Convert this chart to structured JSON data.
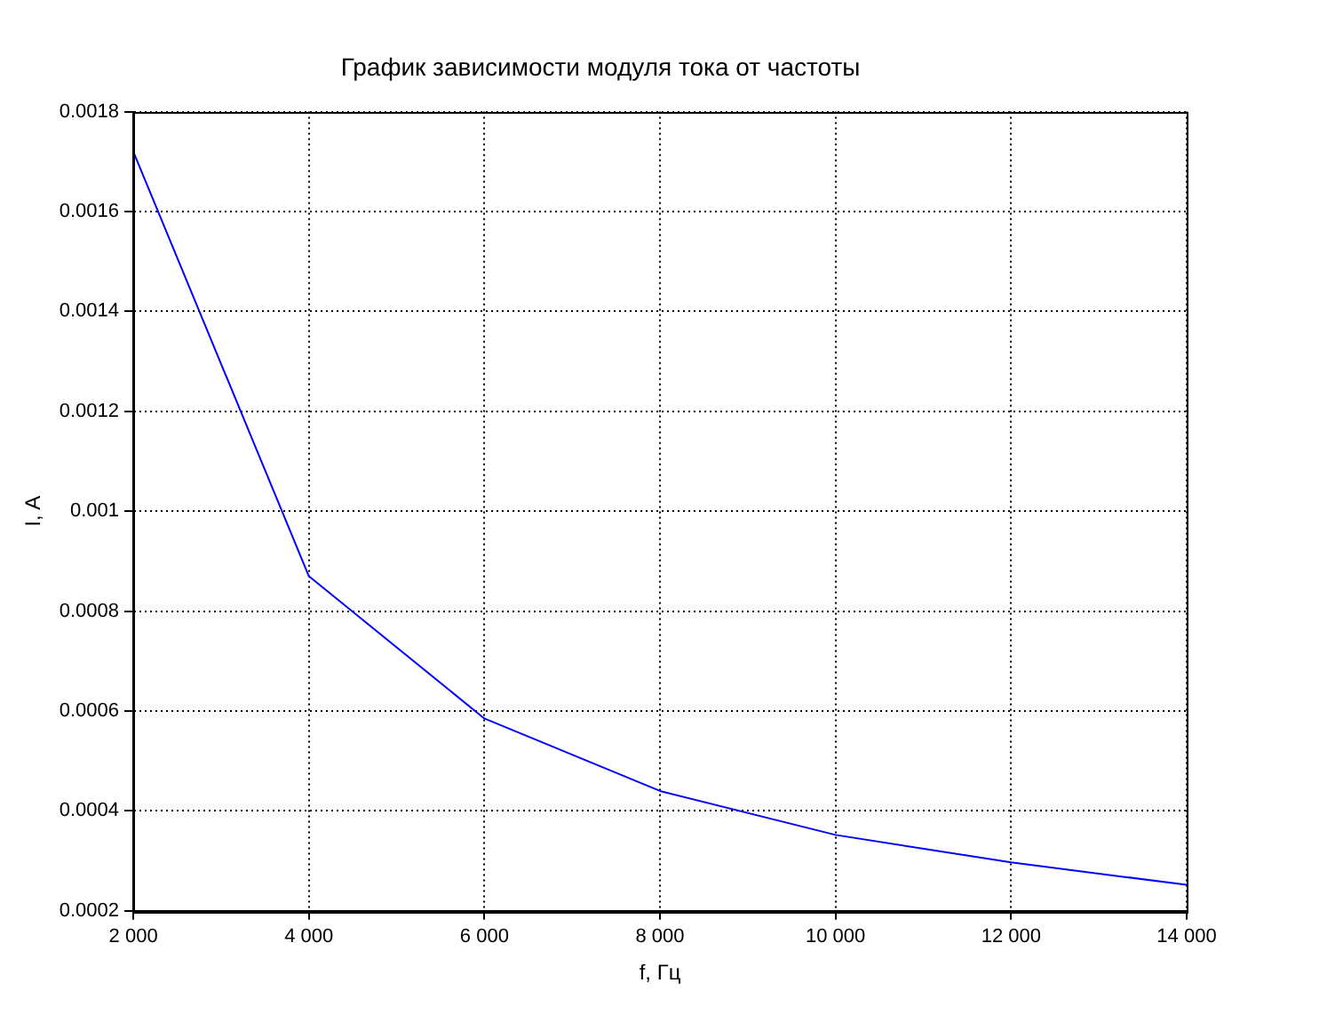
{
  "chart_data": {
    "type": "line",
    "title": "График зависимости модуля тока от частоты",
    "xlabel": "f, Гц",
    "ylabel": "I, A",
    "x": [
      2000,
      4000,
      6000,
      8000,
      10000,
      12000,
      14000
    ],
    "series": [
      {
        "color": "#0000ff",
        "values": [
          0.00172,
          0.00087,
          0.000585,
          0.00044,
          0.000352,
          0.000297,
          0.000252
        ]
      }
    ],
    "xlim": [
      2000,
      14000
    ],
    "ylim": [
      0.0002,
      0.0018
    ],
    "xticks": [
      {
        "value": 2000,
        "label": "2 000"
      },
      {
        "value": 4000,
        "label": "4 000"
      },
      {
        "value": 6000,
        "label": "6 000"
      },
      {
        "value": 8000,
        "label": "8 000"
      },
      {
        "value": 10000,
        "label": "10 000"
      },
      {
        "value": 12000,
        "label": "12 000"
      },
      {
        "value": 14000,
        "label": "14 000"
      }
    ],
    "yticks": [
      0.0002,
      0.0004,
      0.0006,
      0.0008,
      0.001,
      0.0012,
      0.0014,
      0.0016,
      0.0018
    ],
    "grid": true,
    "legend": false,
    "marker": "none",
    "line_style": "solid"
  }
}
